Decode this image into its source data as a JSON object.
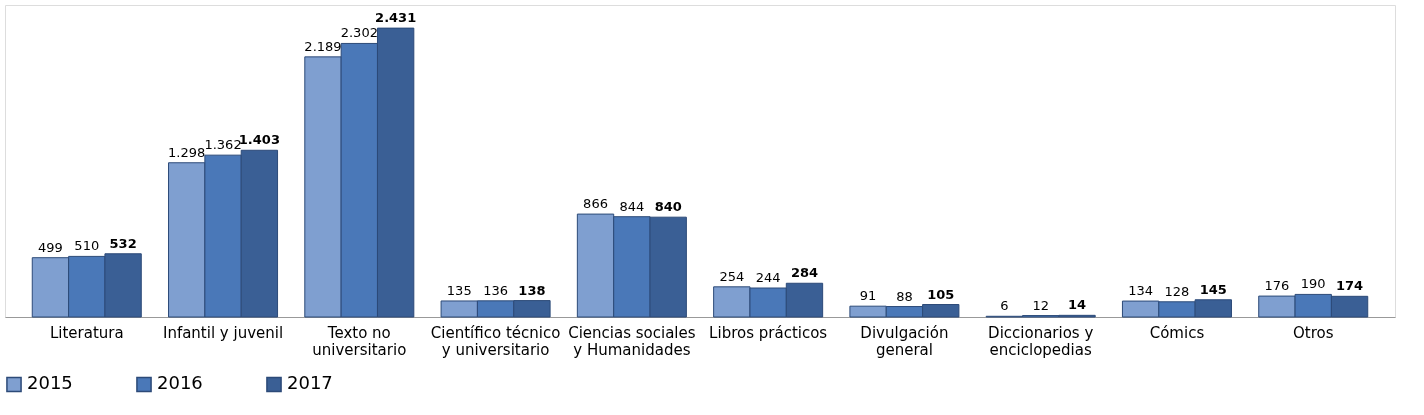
{
  "chart_data": {
    "type": "bar",
    "categories": [
      "Literatura",
      "Infantil y juvenil",
      "Texto no universitario",
      "Científico técnico y universitario",
      "Ciencias sociales y Humanidades",
      "Libros prácticos",
      "Divulgación general",
      "Diccionarios y enciclopedias",
      "Cómics",
      "Otros"
    ],
    "series": [
      {
        "name": "2015",
        "color": "#7f9fd0",
        "values": [
          499,
          1298,
          2189,
          135,
          866,
          254,
          91,
          6,
          134,
          176
        ],
        "value_labels": [
          "499",
          "1.298",
          "2.189",
          "135",
          "866",
          "254",
          "91",
          "6",
          "134",
          "176"
        ]
      },
      {
        "name": "2016",
        "color": "#4a78b8",
        "values": [
          510,
          1362,
          2302,
          136,
          844,
          244,
          88,
          12,
          128,
          190
        ],
        "value_labels": [
          "510",
          "1.362",
          "2.302",
          "136",
          "844",
          "244",
          "88",
          "12",
          "128",
          "190"
        ]
      },
      {
        "name": "2017",
        "color": "#3a5f95",
        "values": [
          532,
          1403,
          2431,
          138,
          840,
          284,
          105,
          14,
          145,
          174
        ],
        "value_labels": [
          "532",
          "1.403",
          "2.431",
          "138",
          "840",
          "284",
          "105",
          "14",
          "145",
          "174"
        ]
      }
    ],
    "legend": "bottom",
    "grid": false
  }
}
